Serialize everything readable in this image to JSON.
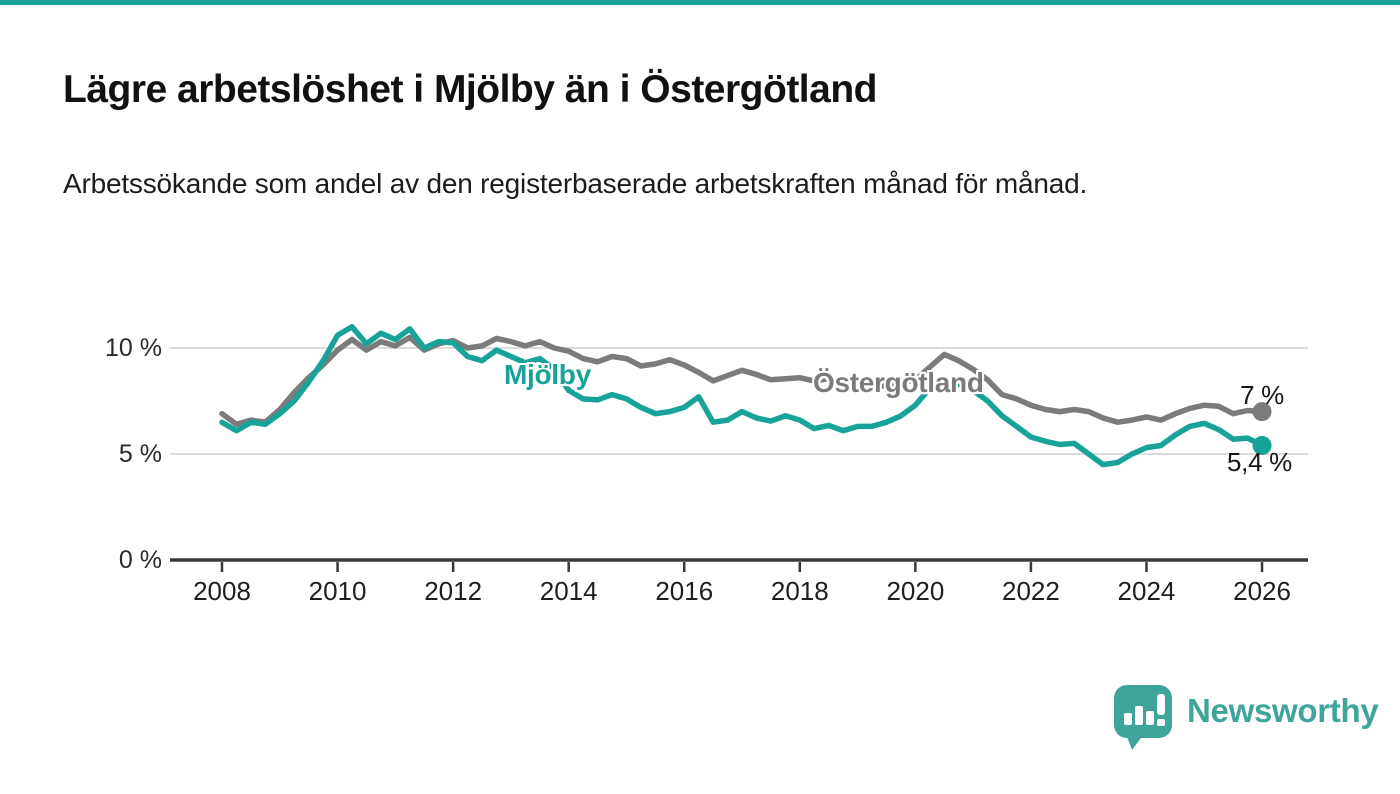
{
  "page": {
    "title": "Lägre arbetslöshet i Mjölby än i Östergötland",
    "subtitle": "Arbetssökande som andel av den registerbaserade arbetskraften månad för månad.",
    "accent_color": "#17a398",
    "background_color": "#ffffff"
  },
  "branding": {
    "logo_text": "Newsworthy",
    "logo_color": "#3fa59b",
    "logo_icon": "newsworthy-speech-bubble-chart-icon"
  },
  "chart_data": {
    "type": "line",
    "title": "",
    "xlabel": "",
    "ylabel": "",
    "x_start": 2008,
    "x_step": 0.25,
    "x_end": 2026,
    "xlim": [
      2007.1,
      2026.8
    ],
    "ylim": [
      0,
      12.3
    ],
    "grid": "horizontal",
    "x_ticks": [
      2008,
      2010,
      2012,
      2014,
      2016,
      2018,
      2020,
      2022,
      2024,
      2026
    ],
    "y_ticks": [
      {
        "value": 0,
        "label": "0 %"
      },
      {
        "value": 5,
        "label": "5 %"
      },
      {
        "value": 10,
        "label": "10 %"
      }
    ],
    "series": [
      {
        "name": "Östergötland",
        "color": "#7b7b7b",
        "end_label": "7 %",
        "end_value": 7.0,
        "values": [
          6.9,
          6.4,
          6.6,
          6.5,
          7.1,
          7.9,
          8.6,
          9.2,
          9.9,
          10.4,
          9.9,
          10.3,
          10.1,
          10.5,
          9.9,
          10.2,
          10.35,
          10.0,
          10.1,
          10.45,
          10.3,
          10.1,
          10.3,
          10.0,
          9.85,
          9.5,
          9.35,
          9.6,
          9.5,
          9.15,
          9.25,
          9.45,
          9.2,
          8.85,
          8.45,
          8.7,
          8.95,
          8.75,
          8.5,
          8.55,
          8.6,
          8.45,
          8.55,
          8.4,
          8.3,
          8.25,
          8.2,
          8.35,
          8.5,
          9.1,
          9.7,
          9.4,
          9.0,
          8.5,
          7.8,
          7.6,
          7.3,
          7.1,
          7.0,
          7.1,
          7.0,
          6.7,
          6.5,
          6.6,
          6.75,
          6.6,
          6.9,
          7.15,
          7.3,
          7.25,
          6.9,
          7.05,
          7.0
        ]
      },
      {
        "name": "Mjölby",
        "color": "#17a398",
        "end_label": "5,4 %",
        "end_value": 5.4,
        "values": [
          6.5,
          6.1,
          6.5,
          6.4,
          6.9,
          7.5,
          8.4,
          9.4,
          10.6,
          11.0,
          10.2,
          10.7,
          10.4,
          10.9,
          10.0,
          10.3,
          10.25,
          9.6,
          9.4,
          9.9,
          9.6,
          9.3,
          9.5,
          9.0,
          8.0,
          7.6,
          7.55,
          7.8,
          7.6,
          7.2,
          6.9,
          7.0,
          7.2,
          7.7,
          6.5,
          6.6,
          7.0,
          6.7,
          6.55,
          6.8,
          6.6,
          6.2,
          6.35,
          6.1,
          6.3,
          6.3,
          6.5,
          6.8,
          7.3,
          8.1,
          8.3,
          8.3,
          8.0,
          7.5,
          6.8,
          6.3,
          5.8,
          5.6,
          5.45,
          5.5,
          5.0,
          4.5,
          4.6,
          5.0,
          5.3,
          5.4,
          5.9,
          6.3,
          6.45,
          6.15,
          5.7,
          5.75,
          5.4
        ]
      }
    ]
  }
}
